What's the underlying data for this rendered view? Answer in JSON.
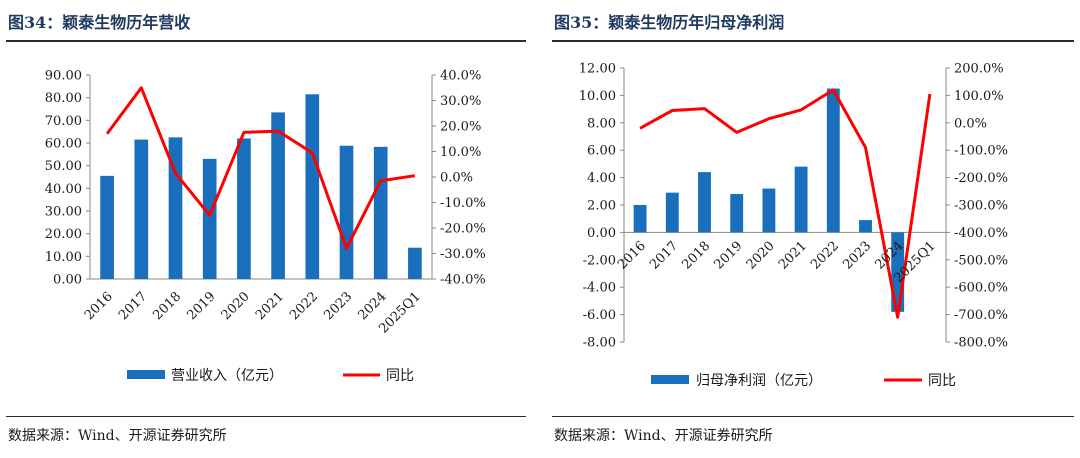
{
  "colors": {
    "bar": "#1a6fbd",
    "line": "#ff0000",
    "title": "#1f3a5f"
  },
  "chart_data": [
    {
      "type": "bar+line",
      "title": "图34：颖泰生物历年营收",
      "categories": [
        "2016",
        "2017",
        "2018",
        "2019",
        "2020",
        "2021",
        "2022",
        "2023",
        "2024",
        "2025Q1"
      ],
      "series": [
        {
          "name": "营业收入（亿元）",
          "kind": "bar",
          "axis": "left",
          "values": [
            45.5,
            61.5,
            62.5,
            53.0,
            62.0,
            73.5,
            81.5,
            58.8,
            58.3,
            13.8
          ]
        },
        {
          "name": "同比",
          "kind": "line",
          "axis": "right",
          "values": [
            17.0,
            35.0,
            1.5,
            -15.0,
            17.5,
            18.0,
            9.5,
            -28.0,
            -1.5,
            0.5
          ]
        }
      ],
      "left_axis": {
        "min": 0,
        "max": 90,
        "step": 10,
        "tick_labels": [
          "0.00",
          "10.00",
          "20.00",
          "30.00",
          "40.00",
          "50.00",
          "60.00",
          "70.00",
          "80.00",
          "90.00"
        ]
      },
      "right_axis": {
        "min": -40,
        "max": 40,
        "step": 10,
        "tick_labels": [
          "-40.0%",
          "-30.0%",
          "-20.0%",
          "-10.0%",
          "0.0%",
          "10.0%",
          "20.0%",
          "30.0%",
          "40.0%"
        ]
      },
      "grid": false,
      "legend_position": "bottom-center",
      "source": "数据来源：Wind、开源证券研究所"
    },
    {
      "type": "bar+line",
      "title": "图35：颖泰生物历年归母净利润",
      "categories": [
        "2016",
        "2017",
        "2018",
        "2019",
        "2020",
        "2021",
        "2022",
        "2023",
        "2024",
        "2025Q1"
      ],
      "series": [
        {
          "name": "归母净利润（亿元）",
          "kind": "bar",
          "axis": "left",
          "values": [
            2.0,
            2.9,
            4.4,
            2.8,
            3.2,
            4.8,
            10.5,
            0.9,
            -5.8,
            null
          ]
        },
        {
          "name": "同比",
          "kind": "line",
          "axis": "right",
          "values": [
            -20.0,
            45.0,
            52.0,
            -35.0,
            15.0,
            47.0,
            120.0,
            -90.0,
            -710.0,
            105.0
          ]
        }
      ],
      "left_axis": {
        "min": -8,
        "max": 12,
        "step": 2,
        "tick_labels": [
          "-8.00",
          "-6.00",
          "-4.00",
          "-2.00",
          "0.00",
          "2.00",
          "4.00",
          "6.00",
          "8.00",
          "10.00",
          "12.00"
        ]
      },
      "right_axis": {
        "min": -800,
        "max": 200,
        "step": 100,
        "tick_labels": [
          "-800.0%",
          "-700.0%",
          "-600.0%",
          "-500.0%",
          "-400.0%",
          "-300.0%",
          "-200.0%",
          "-100.0%",
          "0.0%",
          "100.0%",
          "200.0%"
        ]
      },
      "grid": false,
      "legend_position": "bottom-center",
      "source": "数据来源：Wind、开源证券研究所"
    }
  ]
}
